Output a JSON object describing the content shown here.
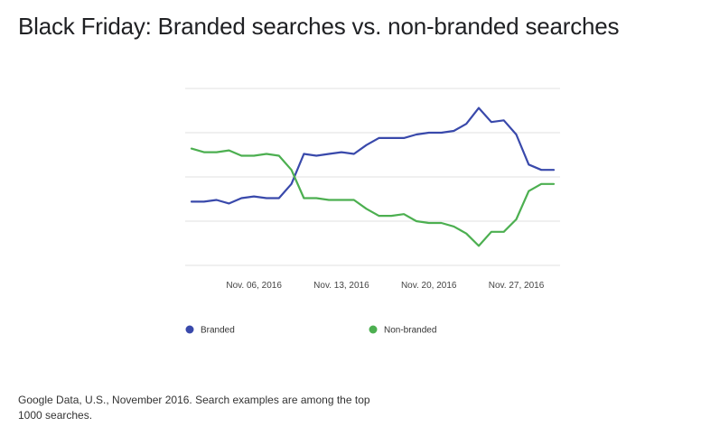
{
  "title": "Black Friday: Branded searches vs. non-branded searches",
  "caption": "Google Data, U.S., November 2016. Search examples are among the top 1000 searches.",
  "colors": {
    "branded": "#3949ab",
    "non_branded": "#4caf50",
    "grid": "#e0e0e0"
  },
  "chart_data": {
    "type": "line",
    "x": [
      "2016-11-01",
      "2016-11-02",
      "2016-11-03",
      "2016-11-04",
      "2016-11-05",
      "2016-11-06",
      "2016-11-07",
      "2016-11-08",
      "2016-11-09",
      "2016-11-10",
      "2016-11-11",
      "2016-11-12",
      "2016-11-13",
      "2016-11-14",
      "2016-11-15",
      "2016-11-16",
      "2016-11-17",
      "2016-11-18",
      "2016-11-19",
      "2016-11-20",
      "2016-11-21",
      "2016-11-22",
      "2016-11-23",
      "2016-11-24",
      "2016-11-25",
      "2016-11-26",
      "2016-11-27",
      "2016-11-28",
      "2016-11-29",
      "2016-11-30"
    ],
    "x_ticks": [
      "Nov. 06, 2016",
      "Nov. 13, 2016",
      "Nov. 20, 2016",
      "Nov. 27, 2016"
    ],
    "series": [
      {
        "name": "Branded",
        "values": [
          0.36,
          0.36,
          0.37,
          0.35,
          0.38,
          0.39,
          0.38,
          0.38,
          0.46,
          0.63,
          0.62,
          0.63,
          0.64,
          0.63,
          0.68,
          0.72,
          0.72,
          0.72,
          0.74,
          0.75,
          0.75,
          0.76,
          0.8,
          0.89,
          0.81,
          0.82,
          0.74,
          0.57,
          0.54,
          0.54
        ]
      },
      {
        "name": "Non-branded",
        "values": [
          0.66,
          0.64,
          0.64,
          0.65,
          0.62,
          0.62,
          0.63,
          0.62,
          0.54,
          0.38,
          0.38,
          0.37,
          0.37,
          0.37,
          0.32,
          0.28,
          0.28,
          0.29,
          0.25,
          0.24,
          0.24,
          0.22,
          0.18,
          0.11,
          0.19,
          0.19,
          0.26,
          0.42,
          0.46,
          0.46
        ]
      }
    ],
    "ylim": [
      0,
      1
    ],
    "grid": true,
    "legend_position": "bottom"
  }
}
